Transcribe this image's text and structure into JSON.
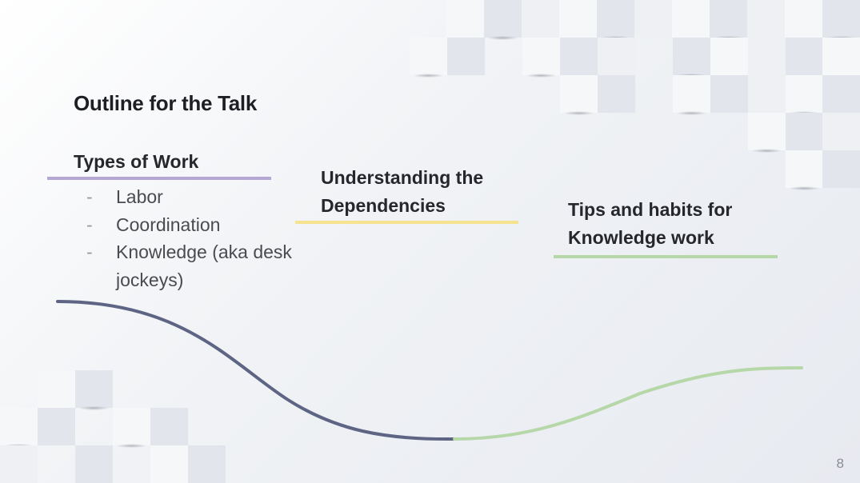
{
  "slide": {
    "title": "Outline for the Talk",
    "sections": [
      {
        "heading": "Types of Work",
        "accent": "#b4a7d6",
        "items": [
          "Labor",
          "Coordination",
          "Knowledge (aka desk jockeys)"
        ]
      },
      {
        "heading": "Understanding the Dependencies",
        "accent": "#f5e38f"
      },
      {
        "heading": "Tips and habits for Knowledge work",
        "accent": "#b6d7a8"
      }
    ],
    "bullet_marker": "-",
    "page_number": "8",
    "curve_colors": {
      "first": "#5d6484",
      "second": "#b6d7a8"
    }
  }
}
